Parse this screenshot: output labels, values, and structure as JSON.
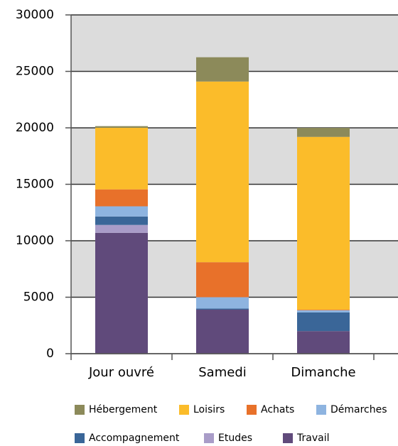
{
  "chart_data": {
    "type": "stacked_bar",
    "categories": [
      "Jour ouvré",
      "Samedi",
      "Dimanche"
    ],
    "series": [
      {
        "name": "Travail",
        "color": "#604a7b",
        "values": [
          10700,
          3900,
          2000
        ]
      },
      {
        "name": "Etudes",
        "color": "#a99cc8",
        "values": [
          700,
          0,
          0
        ]
      },
      {
        "name": "Accompagnement",
        "color": "#3a6698",
        "values": [
          750,
          100,
          1650
        ]
      },
      {
        "name": "Démarches",
        "color": "#8eb4e0",
        "values": [
          900,
          1000,
          200
        ]
      },
      {
        "name": "Achats",
        "color": "#e8712a",
        "values": [
          1500,
          3100,
          50
        ]
      },
      {
        "name": "Loisirs",
        "color": "#fbbc2a",
        "values": [
          5450,
          16000,
          15300
        ]
      },
      {
        "name": "Hébergement",
        "color": "#8c8a5a",
        "values": [
          150,
          2150,
          800
        ]
      }
    ],
    "ylim": [
      0,
      30000
    ],
    "yticks": [
      0,
      5000,
      10000,
      15000,
      20000,
      25000,
      30000
    ],
    "grid": true
  }
}
